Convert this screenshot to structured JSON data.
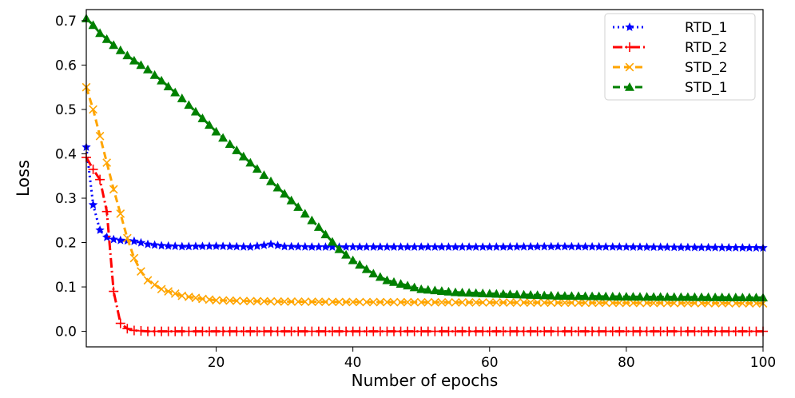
{
  "chart_data": {
    "type": "line",
    "xlabel": "Number of epochs",
    "ylabel": "Loss",
    "xlim": [
      1,
      100
    ],
    "ylim": [
      -0.035,
      0.725
    ],
    "x_ticks": [
      20,
      40,
      60,
      80,
      100
    ],
    "y_ticks": [
      0.0,
      0.1,
      0.2,
      0.3,
      0.4,
      0.5,
      0.6,
      0.7
    ],
    "y_tick_labels": [
      "0.0",
      "0.1",
      "0.2",
      "0.3",
      "0.4",
      "0.5",
      "0.6",
      "0.7"
    ],
    "grid": false,
    "legend_position": "top-right",
    "series": [
      {
        "name": "RTD_1",
        "color": "#0000ff",
        "line_style": "dotted",
        "marker": "star",
        "points": [
          [
            1,
            0.415
          ],
          [
            2,
            0.285
          ],
          [
            3,
            0.228
          ],
          [
            4,
            0.212
          ],
          [
            5,
            0.207
          ],
          [
            6,
            0.205
          ],
          [
            8,
            0.203
          ],
          [
            10,
            0.196
          ],
          [
            12,
            0.193
          ],
          [
            15,
            0.191
          ],
          [
            20,
            0.192
          ],
          [
            25,
            0.19
          ],
          [
            28,
            0.196
          ],
          [
            30,
            0.191
          ],
          [
            35,
            0.19
          ],
          [
            40,
            0.19
          ],
          [
            50,
            0.19
          ],
          [
            60,
            0.19
          ],
          [
            70,
            0.191
          ],
          [
            80,
            0.19
          ],
          [
            90,
            0.189
          ],
          [
            100,
            0.188
          ]
        ]
      },
      {
        "name": "RTD_2",
        "color": "#ff0000",
        "line_style": "dashdot",
        "marker": "plus",
        "points": [
          [
            1,
            0.392
          ],
          [
            2,
            0.365
          ],
          [
            3,
            0.342
          ],
          [
            4,
            0.27
          ],
          [
            5,
            0.09
          ],
          [
            6,
            0.018
          ],
          [
            7,
            0.006
          ],
          [
            8,
            0.002
          ],
          [
            10,
            0.0
          ],
          [
            20,
            0.0
          ],
          [
            40,
            0.0
          ],
          [
            60,
            0.0
          ],
          [
            80,
            0.0
          ],
          [
            100,
            0.0
          ]
        ]
      },
      {
        "name": "STD_2",
        "color": "#ffa500",
        "line_style": "dashed",
        "marker": "x",
        "points": [
          [
            1,
            0.55
          ],
          [
            2,
            0.5
          ],
          [
            3,
            0.44
          ],
          [
            4,
            0.38
          ],
          [
            5,
            0.32
          ],
          [
            6,
            0.265
          ],
          [
            7,
            0.21
          ],
          [
            8,
            0.165
          ],
          [
            9,
            0.135
          ],
          [
            10,
            0.115
          ],
          [
            12,
            0.095
          ],
          [
            15,
            0.08
          ],
          [
            18,
            0.073
          ],
          [
            20,
            0.07
          ],
          [
            25,
            0.068
          ],
          [
            30,
            0.067
          ],
          [
            40,
            0.066
          ],
          [
            60,
            0.065
          ],
          [
            80,
            0.064
          ],
          [
            100,
            0.063
          ]
        ]
      },
      {
        "name": "STD_1",
        "color": "#008000",
        "line_style": "dashed",
        "marker": "triangle",
        "points": [
          [
            1,
            0.705
          ],
          [
            2,
            0.69
          ],
          [
            3,
            0.672
          ],
          [
            5,
            0.645
          ],
          [
            8,
            0.61
          ],
          [
            10,
            0.59
          ],
          [
            12,
            0.565
          ],
          [
            15,
            0.525
          ],
          [
            20,
            0.45
          ],
          [
            25,
            0.38
          ],
          [
            30,
            0.31
          ],
          [
            35,
            0.235
          ],
          [
            38,
            0.185
          ],
          [
            40,
            0.16
          ],
          [
            43,
            0.13
          ],
          [
            45,
            0.115
          ],
          [
            50,
            0.095
          ],
          [
            55,
            0.088
          ],
          [
            60,
            0.085
          ],
          [
            70,
            0.08
          ],
          [
            80,
            0.078
          ],
          [
            90,
            0.077
          ],
          [
            100,
            0.076
          ]
        ]
      }
    ]
  }
}
